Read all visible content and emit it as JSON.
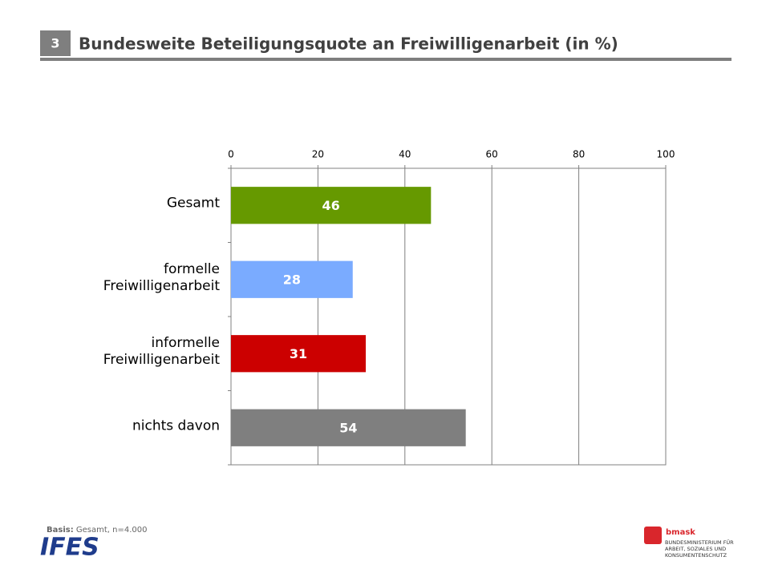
{
  "slide_number": "3",
  "chart_data": {
    "type": "bar",
    "orientation": "horizontal",
    "title": "Bundesweite Beteiligungsquote an Freiwilligenarbeit (in %)",
    "categories": [
      "Gesamt",
      "formelle\nFreiwilligenarbeit",
      "informelle\nFreiwilligenarbeit",
      "nichts davon"
    ],
    "values": [
      46,
      28,
      31,
      54
    ],
    "colors": [
      "#669900",
      "#7aabff",
      "#cc0000",
      "#7f7f7f"
    ],
    "xlim": [
      0,
      100
    ],
    "xticks": [
      0,
      20,
      40,
      60,
      80,
      100
    ],
    "grid": true
  },
  "footer": {
    "basis_label": "Basis:",
    "basis_text": "Gesamt, n=4.000",
    "logo_left": "IFES",
    "logo_right": "bmask",
    "ministry": "BUNDESMINISTERIUM FÜR\nARBEIT, SOZIALES UND\nKONSUMENTENSCHUTZ"
  }
}
